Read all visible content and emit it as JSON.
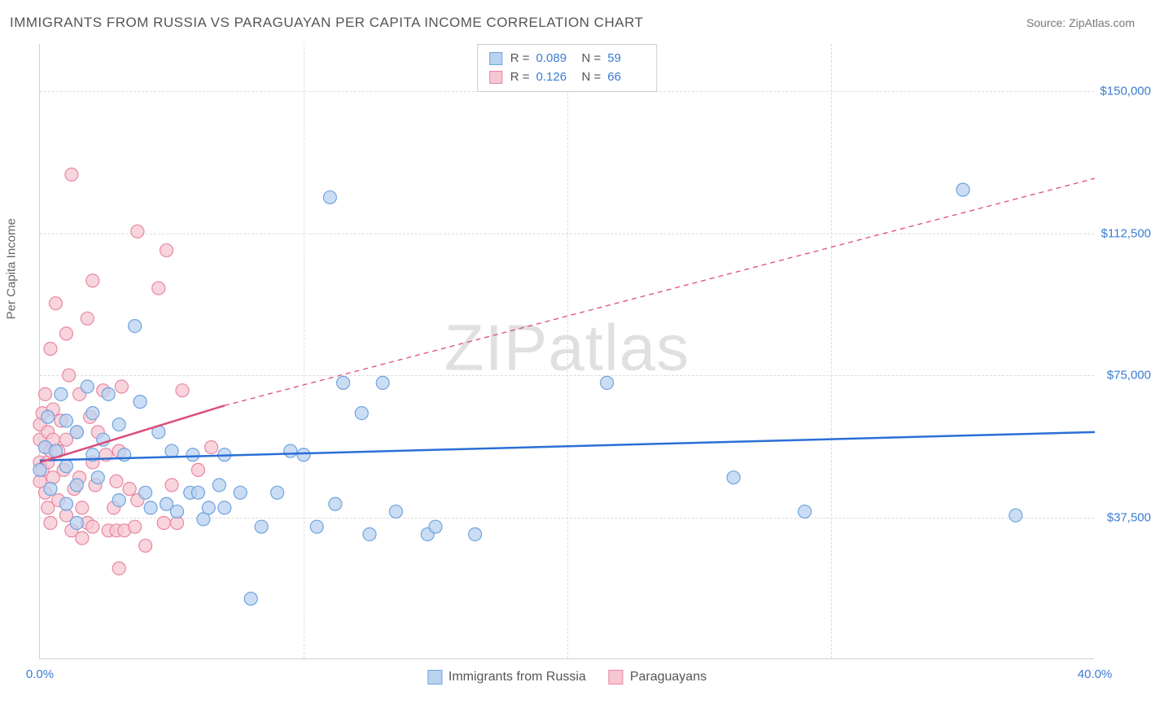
{
  "title": "IMMIGRANTS FROM RUSSIA VS PARAGUAYAN PER CAPITA INCOME CORRELATION CHART",
  "source": "Source: ZipAtlas.com",
  "watermark": {
    "part1": "ZIP",
    "part2": "atlas"
  },
  "yaxis_title": "Per Capita Income",
  "chart": {
    "type": "scatter",
    "xlim": [
      0,
      40
    ],
    "ylim": [
      0,
      162500
    ],
    "background_color": "#ffffff",
    "grid_color": "#dcdcdc",
    "axis_color": "#d0d0d0",
    "tick_label_color": "#3a7bd5",
    "y_ticks": [
      {
        "v": 37500,
        "label": "$37,500"
      },
      {
        "v": 75000,
        "label": "$75,000"
      },
      {
        "v": 112500,
        "label": "$112,500"
      },
      {
        "v": 150000,
        "label": "$150,000"
      }
    ],
    "y_gridlines": [
      37500,
      75000,
      112500,
      150000
    ],
    "x_gridlines": [
      10,
      20,
      30
    ],
    "x_ticks": [
      {
        "v": 0,
        "label": "0.0%"
      },
      {
        "v": 40,
        "label": "40.0%"
      }
    ],
    "marker_radius": 8,
    "marker_stroke_width": 1.2,
    "trend_solid_width": 2.5,
    "trend_dash_width": 1.3,
    "trend_dash_pattern": "6,5"
  },
  "series": [
    {
      "key": "russia",
      "label": "Immigrants from Russia",
      "color_fill": "#b9d2f0",
      "color_stroke": "#6fa3dd",
      "trend_color": "#2a6fd6",
      "r_value": "0.089",
      "n_value": "59",
      "trend_solid": [
        [
          0,
          52500
        ],
        [
          40,
          60000
        ]
      ],
      "trend_dash": null,
      "points": [
        [
          0.0,
          50000
        ],
        [
          0.2,
          56000
        ],
        [
          0.3,
          64000
        ],
        [
          0.4,
          45000
        ],
        [
          0.6,
          55000
        ],
        [
          0.8,
          70000
        ],
        [
          1.0,
          51000
        ],
        [
          1.0,
          41000
        ],
        [
          1.0,
          63000
        ],
        [
          1.4,
          60000
        ],
        [
          1.4,
          46000
        ],
        [
          1.4,
          36000
        ],
        [
          1.8,
          72000
        ],
        [
          2.0,
          54000
        ],
        [
          2.0,
          65000
        ],
        [
          2.2,
          48000
        ],
        [
          2.4,
          58000
        ],
        [
          2.6,
          70000
        ],
        [
          3.0,
          42000
        ],
        [
          3.0,
          62000
        ],
        [
          3.2,
          54000
        ],
        [
          3.6,
          88000
        ],
        [
          3.8,
          68000
        ],
        [
          4.0,
          44000
        ],
        [
          4.2,
          40000
        ],
        [
          4.5,
          60000
        ],
        [
          4.8,
          41000
        ],
        [
          5.0,
          55000
        ],
        [
          5.2,
          39000
        ],
        [
          5.7,
          44000
        ],
        [
          5.8,
          54000
        ],
        [
          6.0,
          44000
        ],
        [
          6.2,
          37000
        ],
        [
          6.4,
          40000
        ],
        [
          6.8,
          46000
        ],
        [
          7.0,
          54000
        ],
        [
          7.0,
          40000
        ],
        [
          7.6,
          44000
        ],
        [
          8.0,
          16000
        ],
        [
          8.4,
          35000
        ],
        [
          9.0,
          44000
        ],
        [
          9.5,
          55000
        ],
        [
          10.0,
          54000
        ],
        [
          10.5,
          35000
        ],
        [
          11.0,
          122000
        ],
        [
          11.2,
          41000
        ],
        [
          11.5,
          73000
        ],
        [
          12.2,
          65000
        ],
        [
          12.5,
          33000
        ],
        [
          13.0,
          73000
        ],
        [
          13.5,
          39000
        ],
        [
          14.7,
          33000
        ],
        [
          15.0,
          35000
        ],
        [
          16.5,
          33000
        ],
        [
          21.5,
          73000
        ],
        [
          26.3,
          48000
        ],
        [
          29.0,
          39000
        ],
        [
          35.0,
          124000
        ],
        [
          37.0,
          38000
        ]
      ]
    },
    {
      "key": "paraguay",
      "label": "Paraguayans",
      "color_fill": "#f6c7d2",
      "color_stroke": "#e985a2",
      "trend_color": "#db4d78",
      "r_value": "0.126",
      "n_value": "66",
      "trend_solid": [
        [
          0,
          52000
        ],
        [
          7,
          67000
        ]
      ],
      "trend_dash": [
        [
          7,
          67000
        ],
        [
          40,
          127000
        ]
      ],
      "points": [
        [
          0.0,
          58000
        ],
        [
          0.0,
          52000
        ],
        [
          0.0,
          62000
        ],
        [
          0.0,
          47000
        ],
        [
          0.1,
          65000
        ],
        [
          0.1,
          50000
        ],
        [
          0.2,
          56000
        ],
        [
          0.2,
          44000
        ],
        [
          0.2,
          70000
        ],
        [
          0.3,
          52000
        ],
        [
          0.3,
          40000
        ],
        [
          0.3,
          60000
        ],
        [
          0.4,
          55000
        ],
        [
          0.4,
          82000
        ],
        [
          0.4,
          36000
        ],
        [
          0.5,
          66000
        ],
        [
          0.5,
          48000
        ],
        [
          0.5,
          58000
        ],
        [
          0.6,
          94000
        ],
        [
          0.7,
          42000
        ],
        [
          0.7,
          55000
        ],
        [
          0.8,
          63000
        ],
        [
          0.9,
          50000
        ],
        [
          1.0,
          86000
        ],
        [
          1.0,
          38000
        ],
        [
          1.0,
          58000
        ],
        [
          1.1,
          75000
        ],
        [
          1.2,
          128000
        ],
        [
          1.2,
          34000
        ],
        [
          1.3,
          45000
        ],
        [
          1.4,
          60000
        ],
        [
          1.5,
          48000
        ],
        [
          1.5,
          70000
        ],
        [
          1.6,
          32000
        ],
        [
          1.6,
          40000
        ],
        [
          1.8,
          36000
        ],
        [
          1.8,
          90000
        ],
        [
          1.9,
          64000
        ],
        [
          2.0,
          100000
        ],
        [
          2.0,
          52000
        ],
        [
          2.0,
          35000
        ],
        [
          2.1,
          46000
        ],
        [
          2.2,
          60000
        ],
        [
          2.4,
          71000
        ],
        [
          2.5,
          54000
        ],
        [
          2.6,
          34000
        ],
        [
          2.8,
          40000
        ],
        [
          2.9,
          47000
        ],
        [
          2.9,
          34000
        ],
        [
          3.0,
          24000
        ],
        [
          3.0,
          55000
        ],
        [
          3.1,
          72000
        ],
        [
          3.2,
          34000
        ],
        [
          3.4,
          45000
        ],
        [
          3.6,
          35000
        ],
        [
          3.7,
          113000
        ],
        [
          3.7,
          42000
        ],
        [
          4.0,
          30000
        ],
        [
          4.5,
          98000
        ],
        [
          4.7,
          36000
        ],
        [
          4.8,
          108000
        ],
        [
          5.0,
          46000
        ],
        [
          5.2,
          36000
        ],
        [
          5.4,
          71000
        ],
        [
          6.0,
          50000
        ],
        [
          6.5,
          56000
        ]
      ]
    }
  ]
}
